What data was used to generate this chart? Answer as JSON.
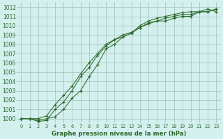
{
  "x": [
    0,
    1,
    2,
    3,
    4,
    5,
    6,
    7,
    8,
    9,
    10,
    11,
    12,
    13,
    14,
    15,
    16,
    17,
    18,
    19,
    20,
    21,
    22,
    23
  ],
  "line1": [
    1000.0,
    1000.0,
    999.8,
    1000.0,
    1000.2,
    1001.0,
    1002.2,
    1003.0,
    1004.5,
    1005.8,
    1007.5,
    1008.0,
    1008.8,
    1009.2,
    1010.0,
    1010.5,
    1010.8,
    1011.0,
    1011.2,
    1011.4,
    1011.5,
    1011.5,
    1011.8,
    1011.5
  ],
  "line2": [
    1000.0,
    1000.0,
    999.7,
    999.8,
    1001.0,
    1001.8,
    1003.0,
    1004.5,
    1005.5,
    1006.8,
    1007.8,
    1008.5,
    1008.8,
    1009.2,
    1009.8,
    1010.3,
    1010.5,
    1010.5,
    1010.8,
    1011.0,
    1011.0,
    1011.5,
    1011.5,
    1011.8
  ],
  "line3": [
    1000.0,
    1000.0,
    1000.0,
    1000.3,
    1001.5,
    1002.5,
    1003.5,
    1004.8,
    1006.0,
    1007.0,
    1008.0,
    1008.5,
    1009.0,
    1009.3,
    1009.8,
    1010.2,
    1010.5,
    1010.8,
    1011.0,
    1011.2,
    1011.2,
    1011.5,
    1011.5,
    1011.8
  ],
  "line_color": "#2d6a2d",
  "bg_color": "#d4f0ee",
  "grid_color": "#9dbfb8",
  "xlabel": "Graphe pression niveau de la mer (hPa)",
  "ylim": [
    999.5,
    1012.5
  ],
  "xlim_min": -0.5,
  "xlim_max": 23.5,
  "yticks": [
    1000,
    1001,
    1002,
    1003,
    1004,
    1005,
    1006,
    1007,
    1008,
    1009,
    1010,
    1011,
    1012
  ],
  "xticks": [
    0,
    1,
    2,
    3,
    4,
    5,
    6,
    7,
    8,
    9,
    10,
    11,
    12,
    13,
    14,
    15,
    16,
    17,
    18,
    19,
    20,
    21,
    22,
    23
  ]
}
